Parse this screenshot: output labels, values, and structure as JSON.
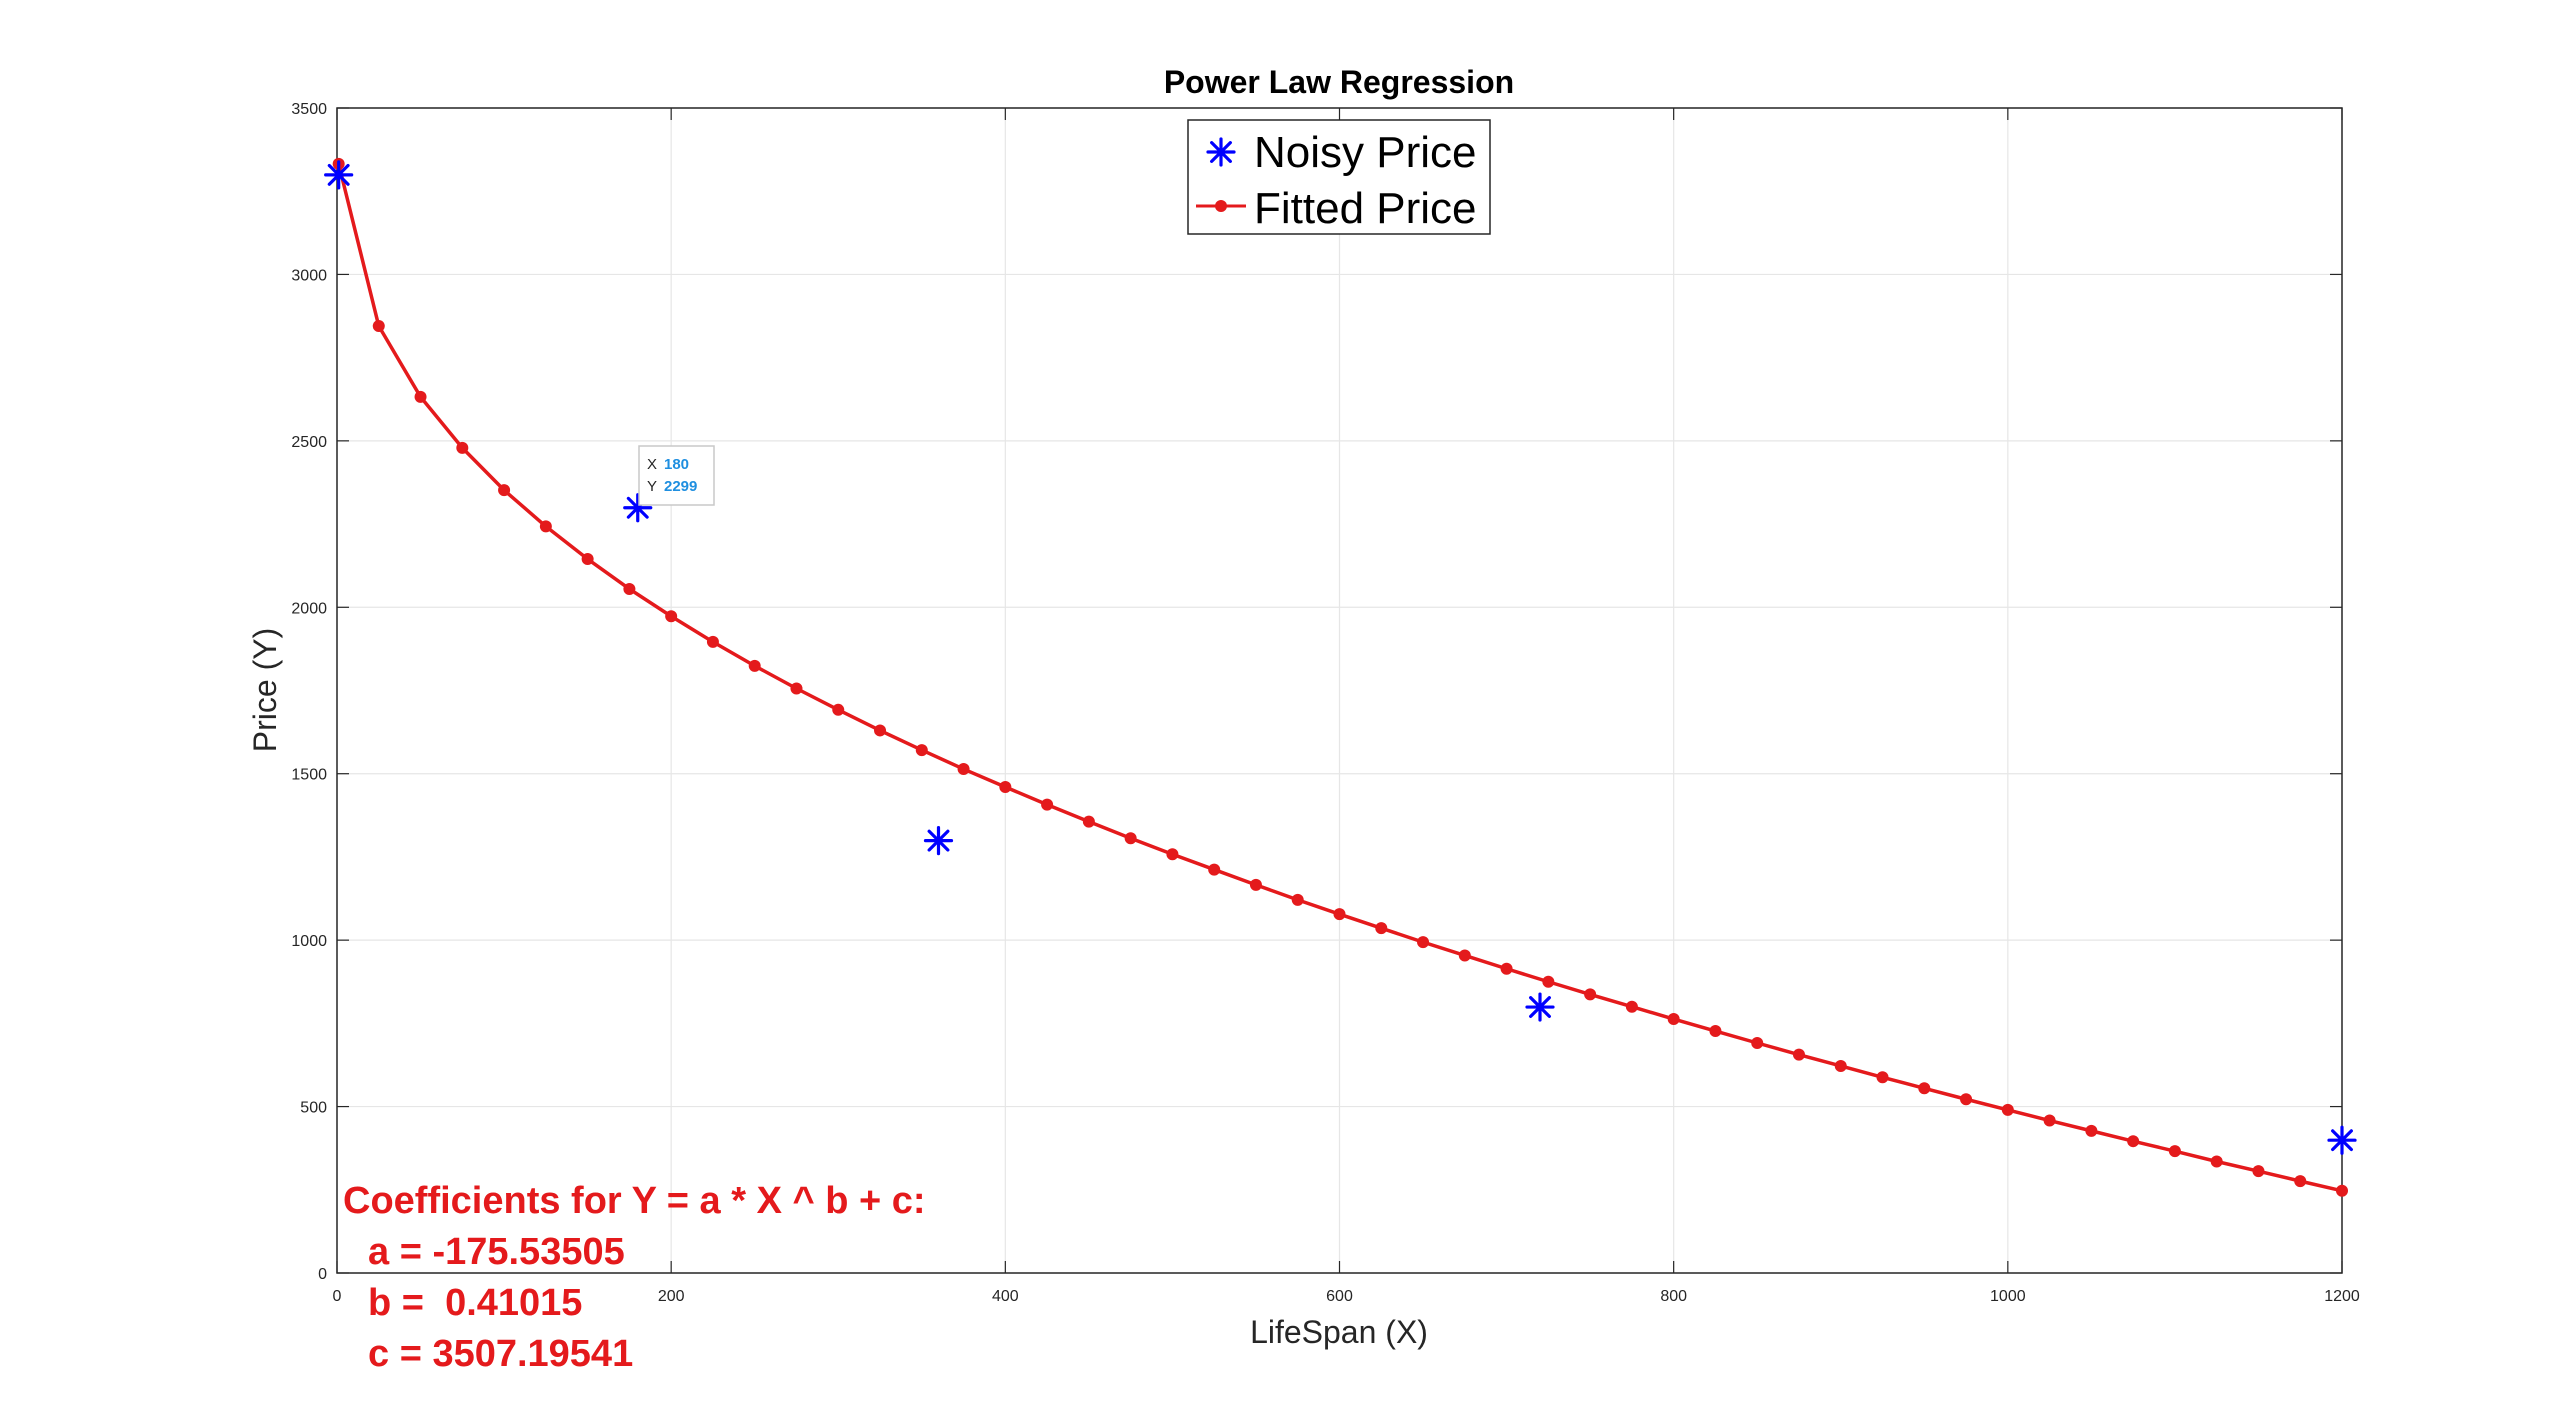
{
  "chart_data": {
    "type": "scatter",
    "title": "Power Law Regression",
    "xlabel": "LifeSpan (X)",
    "ylabel": "Price (Y)",
    "xlim": [
      0,
      1200
    ],
    "ylim": [
      0,
      3500
    ],
    "x_ticks": [
      0,
      200,
      400,
      600,
      800,
      1000,
      1200
    ],
    "y_ticks": [
      0,
      500,
      1000,
      1500,
      2000,
      2500,
      3000,
      3500
    ],
    "grid": true,
    "legend_position": "top-center",
    "colors": {
      "noisy": "#0000ff",
      "fitted": "#e41a1c",
      "coefficients": "#e41a1c",
      "tooltip_value": "#1f8fe0"
    },
    "series": [
      {
        "name": "Noisy Price",
        "marker": "asterisk",
        "x": [
          1,
          180,
          360,
          720,
          1200
        ],
        "y": [
          3299,
          2299,
          1299,
          799,
          399
        ]
      },
      {
        "name": "Fitted Price",
        "marker": "dot-line",
        "x": [
          1,
          25,
          50,
          75,
          100,
          125,
          150,
          175,
          200,
          225,
          250,
          275,
          300,
          325,
          350,
          375,
          400,
          425,
          450,
          475,
          500,
          525,
          550,
          575,
          600,
          625,
          650,
          675,
          700,
          725,
          750,
          775,
          800,
          825,
          850,
          875,
          900,
          925,
          950,
          975,
          1000,
          1025,
          1050,
          1075,
          1100,
          1125,
          1150,
          1175,
          1200
        ],
        "y": [
          3332,
          2845,
          2632,
          2479,
          2352,
          2243,
          2145,
          2055,
          1973,
          1896,
          1824,
          1756,
          1692,
          1630,
          1571,
          1514,
          1460,
          1407,
          1356,
          1306,
          1258,
          1212,
          1166,
          1121,
          1078,
          1036,
          994,
          954,
          914,
          875,
          837,
          800,
          763,
          727,
          691,
          656,
          622,
          588,
          555,
          522,
          490,
          458,
          427,
          396,
          366,
          335,
          306,
          276,
          247
        ]
      }
    ],
    "annotations": {
      "datatip": {
        "x_label": "X",
        "x_value": "180",
        "y_label": "Y",
        "y_value": "2299",
        "anchor_x": 180,
        "anchor_y": 2299
      },
      "coefficients": [
        "Coefficients for Y = a * X ^ b + c:",
        "a = -175.53505",
        "b =  0.41015",
        "c = 3507.19541"
      ]
    }
  }
}
